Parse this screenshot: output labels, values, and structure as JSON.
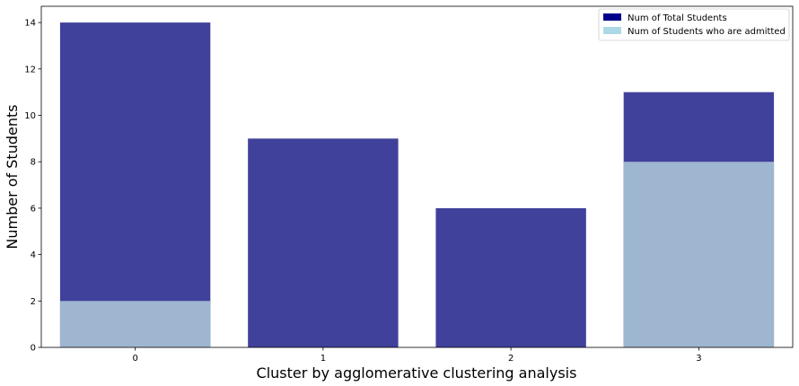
{
  "chart_data": {
    "type": "bar",
    "categories": [
      "0",
      "1",
      "2",
      "3"
    ],
    "series": [
      {
        "name": "Num of Total Students",
        "values": [
          14,
          9,
          6,
          11
        ],
        "color": "#40419a",
        "legend_color": "#00008b"
      },
      {
        "name": "Num of Students who are admitted",
        "values": [
          2,
          0,
          0,
          8
        ],
        "color": "#9eb6d0",
        "legend_color": "#add8e6"
      }
    ],
    "xlabel": "Cluster by agglomerative clustering analysis",
    "ylabel": "Number of Students",
    "ylim": [
      0,
      14.7
    ],
    "yticks": [
      0,
      2,
      4,
      6,
      8,
      10,
      12,
      14
    ],
    "overlay": true,
    "grid": false,
    "legend_position": "top-right"
  }
}
